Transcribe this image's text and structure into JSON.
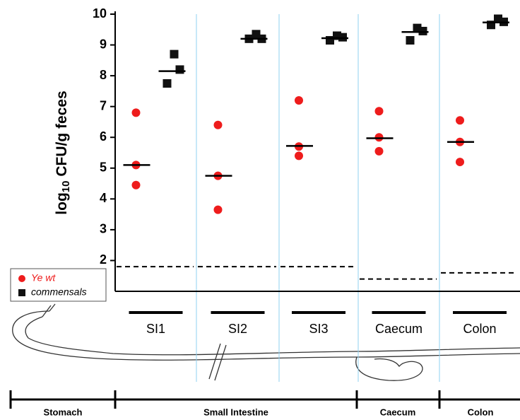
{
  "chart_data": {
    "type": "dot",
    "ylabel": {
      "base": "log",
      "sub": "10",
      "rest": " CFU/g feces"
    },
    "categories": [
      "SI1",
      "SI2",
      "SI3",
      "Caecum",
      "Colon"
    ],
    "series": [
      {
        "name": "Ye wt",
        "color": "#ee1c1c",
        "marker": "circle",
        "values": [
          [
            6.8,
            5.1,
            4.45
          ],
          [
            6.4,
            4.75,
            3.65
          ],
          [
            7.2,
            5.4,
            5.7
          ],
          [
            6.85,
            5.55,
            6.0
          ],
          [
            6.55,
            5.2,
            5.85
          ]
        ],
        "means": [
          5.1,
          4.75,
          5.72,
          5.97,
          5.85
        ]
      },
      {
        "name": "commensals",
        "color": "#111111",
        "marker": "square",
        "values": [
          [
            8.7,
            7.75,
            8.2
          ],
          [
            9.35,
            9.2,
            9.2
          ],
          [
            9.3,
            9.15,
            9.25
          ],
          [
            9.55,
            9.15,
            9.45
          ],
          [
            9.85,
            9.65,
            9.75
          ]
        ],
        "means": [
          8.15,
          9.2,
          9.22,
          9.42,
          9.73
        ]
      }
    ],
    "detection_limits": [
      1.8,
      1.8,
      1.8,
      1.4,
      1.6
    ],
    "ylim": [
      1,
      10
    ],
    "yticks": [
      2,
      3,
      4,
      5,
      6,
      7,
      8,
      9,
      10
    ],
    "regions": [
      "Stomach",
      "Small Intestine",
      "Caecum",
      "Colon"
    ]
  }
}
